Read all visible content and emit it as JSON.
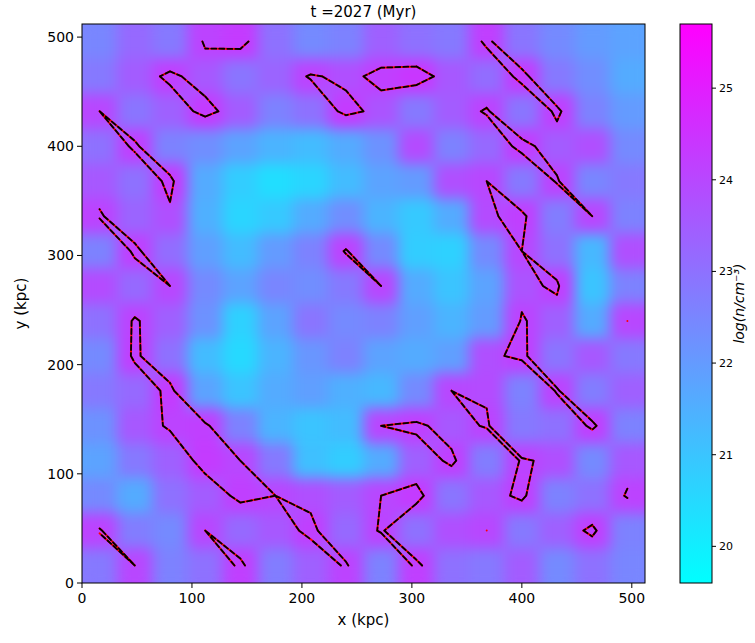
{
  "chart_data": {
    "type": "heatmap",
    "title": "t =2027 (Myr)",
    "x_label": "x (kpc)",
    "y_label": "y (kpc)",
    "xlim": [
      0,
      512
    ],
    "ylim": [
      0,
      512
    ],
    "xticks": [
      0,
      100,
      200,
      300,
      400,
      500
    ],
    "yticks": [
      0,
      100,
      200,
      300,
      400,
      500
    ],
    "cells": [
      [
        22.5,
        23.2,
        22.8,
        24.1,
        24.3,
        23.0,
        22.4,
        22.6,
        23.4,
        23.0,
        22.8,
        24.2,
        22.9,
        22.4,
        22.0,
        21.8
      ],
      [
        22.8,
        23.5,
        24.2,
        23.6,
        22.9,
        23.3,
        24.1,
        23.8,
        24.2,
        24.4,
        23.6,
        23.1,
        24.3,
        22.8,
        22.3,
        21.6
      ],
      [
        24.0,
        22.9,
        23.4,
        24.3,
        23.5,
        22.6,
        23.0,
        24.3,
        23.7,
        22.8,
        23.5,
        24.1,
        22.9,
        24.2,
        22.6,
        22.0
      ],
      [
        23.0,
        24.2,
        22.6,
        22.3,
        21.8,
        21.4,
        21.2,
        21.6,
        22.2,
        23.9,
        22.6,
        23.2,
        24.3,
        23.5,
        23.8,
        22.4
      ],
      [
        23.6,
        23.0,
        24.3,
        21.6,
        20.8,
        20.4,
        20.6,
        21.2,
        21.8,
        22.0,
        23.8,
        24.0,
        22.8,
        24.1,
        22.5,
        22.8
      ],
      [
        24.1,
        23.3,
        23.8,
        21.5,
        20.6,
        20.9,
        21.6,
        22.3,
        21.4,
        20.9,
        21.6,
        23.9,
        24.2,
        22.7,
        24.0,
        22.6
      ],
      [
        22.6,
        24.2,
        23.1,
        21.9,
        21.2,
        22.0,
        22.6,
        24.1,
        22.4,
        20.8,
        20.7,
        22.4,
        24.0,
        23.0,
        21.3,
        23.8
      ],
      [
        23.9,
        23.2,
        24.0,
        22.4,
        21.8,
        22.5,
        22.3,
        22.8,
        24.0,
        21.6,
        21.0,
        21.8,
        23.7,
        24.2,
        21.0,
        22.6
      ],
      [
        23.0,
        24.1,
        23.4,
        22.2,
        20.7,
        21.8,
        22.9,
        22.4,
        22.6,
        21.9,
        21.4,
        22.0,
        24.1,
        23.4,
        21.6,
        24.0
      ],
      [
        22.4,
        24.2,
        23.0,
        21.2,
        20.5,
        21.4,
        22.1,
        22.6,
        21.8,
        21.6,
        21.9,
        23.8,
        24.2,
        22.9,
        23.6,
        22.8
      ],
      [
        22.8,
        23.2,
        24.3,
        21.8,
        21.0,
        21.6,
        21.9,
        21.5,
        21.3,
        22.4,
        24.0,
        23.9,
        22.6,
        24.1,
        22.7,
        23.4
      ],
      [
        22.2,
        23.6,
        24.1,
        24.2,
        22.6,
        21.4,
        21.0,
        21.2,
        24.0,
        24.2,
        23.6,
        24.1,
        22.8,
        23.0,
        24.2,
        22.6
      ],
      [
        21.8,
        22.8,
        23.4,
        24.3,
        24.0,
        22.8,
        21.1,
        20.8,
        21.6,
        23.4,
        24.2,
        22.7,
        24.1,
        23.8,
        22.4,
        23.6
      ],
      [
        22.4,
        21.6,
        23.0,
        23.5,
        24.2,
        24.0,
        23.8,
        23.5,
        24.0,
        24.3,
        22.9,
        23.6,
        24.2,
        22.6,
        23.0,
        24.1
      ],
      [
        24.1,
        22.7,
        22.4,
        24.0,
        23.2,
        23.6,
        24.2,
        23.2,
        24.1,
        23.0,
        23.8,
        24.0,
        22.8,
        23.4,
        24.2,
        22.6
      ],
      [
        22.8,
        24.0,
        22.6,
        23.0,
        24.2,
        22.7,
        23.4,
        24.1,
        22.6,
        24.2,
        23.0,
        22.8,
        23.5,
        22.4,
        23.0,
        22.5
      ]
    ],
    "colorbar": {
      "label": "log(n/cm⁻³)",
      "range": [
        19.6,
        25.7
      ],
      "ticks": [
        20,
        21,
        22,
        23,
        24,
        25
      ]
    },
    "contours": [
      {
        "level": 24.0,
        "color": "red",
        "line_style": "solid"
      },
      {
        "level": 24.0,
        "color": "black",
        "line_style": "dashed"
      }
    ]
  }
}
